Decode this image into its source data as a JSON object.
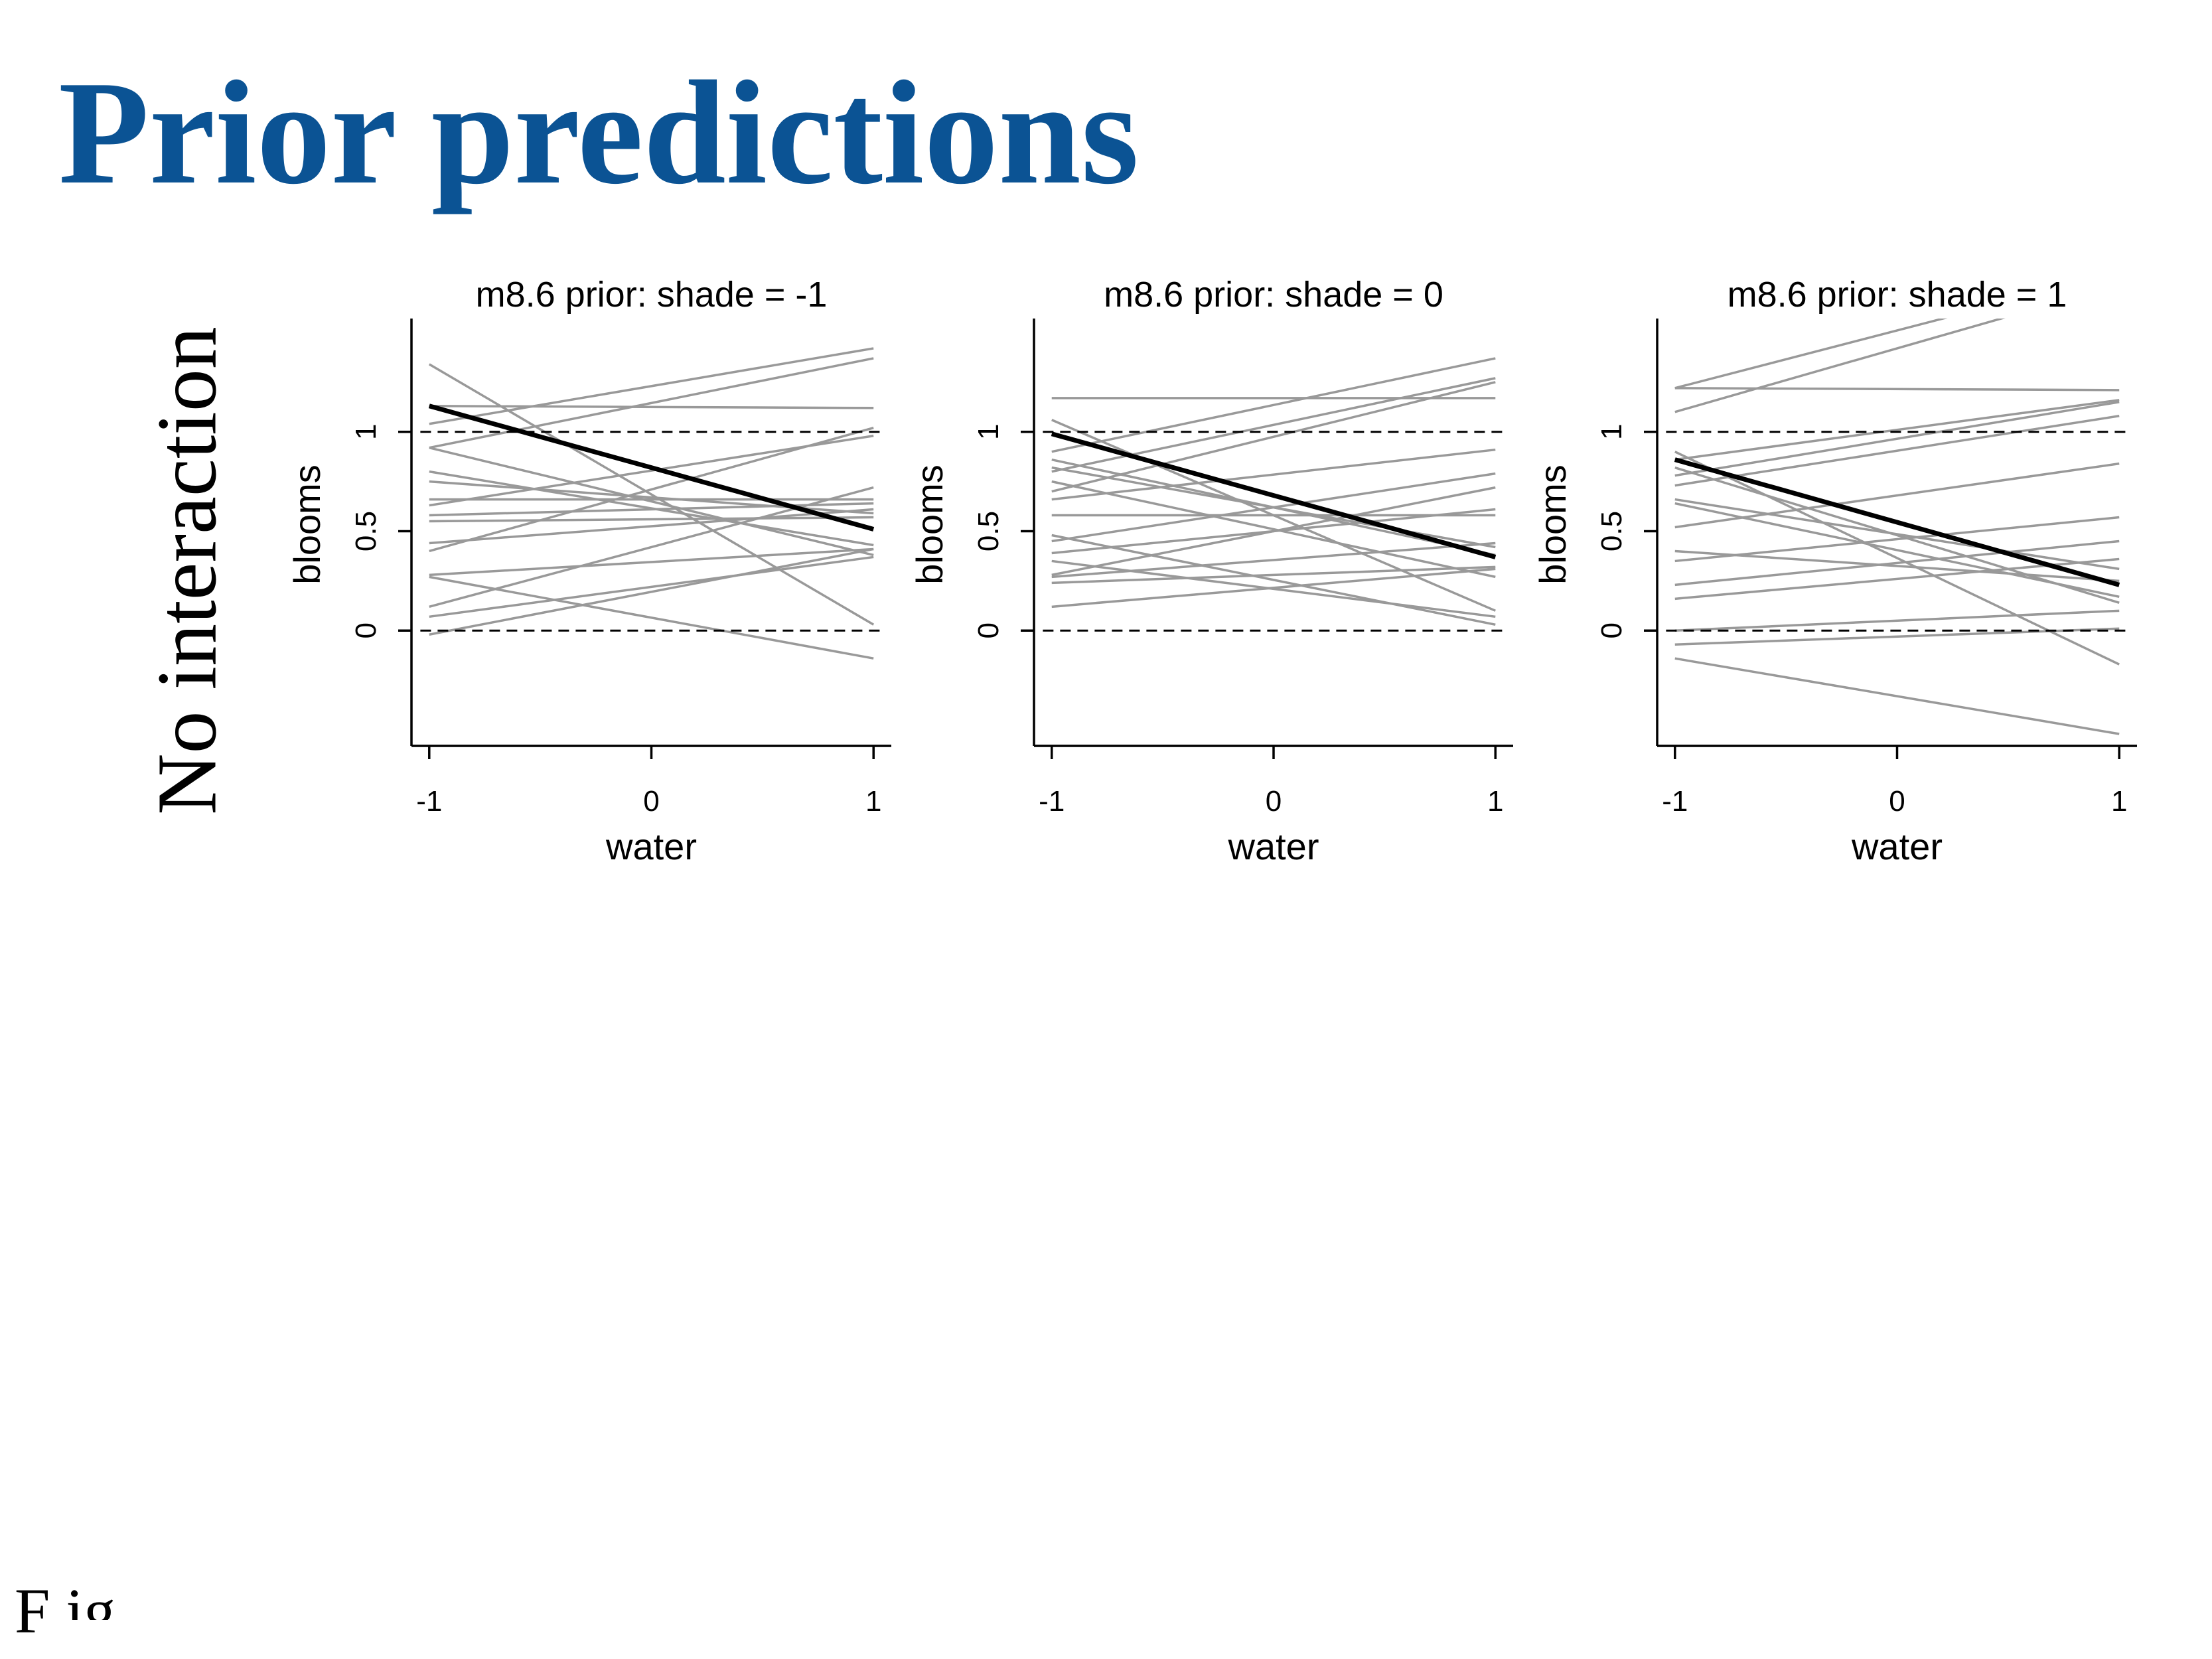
{
  "slide": {
    "title": "Prior predictions",
    "side_label": "No interaction",
    "footer_letter": "F",
    "footer_cut": "ig"
  },
  "colors": {
    "title": "#0b5394",
    "prior_line": "#999999",
    "mean_line": "#000000",
    "ref_line": "#000000"
  },
  "chart_data": [
    {
      "type": "line",
      "title": "m8.6 prior: shade = -1",
      "xlabel": "water",
      "ylabel": "blooms",
      "xlim": [
        -1.08,
        1.08
      ],
      "ylim": [
        -0.58,
        1.57
      ],
      "xticks": [
        -1,
        0,
        1
      ],
      "yticks": [
        0,
        0.5,
        1
      ],
      "reference_lines": [
        0,
        1
      ],
      "mean_line": {
        "x": [
          -1,
          1
        ],
        "y": [
          1.13,
          0.51
        ]
      },
      "series": [
        {
          "x": [
            -1,
            1
          ],
          "y": [
            1.34,
            0.03
          ]
        },
        {
          "x": [
            -1,
            1
          ],
          "y": [
            1.04,
            1.42
          ]
        },
        {
          "x": [
            -1,
            1
          ],
          "y": [
            0.92,
            1.37
          ]
        },
        {
          "x": [
            -1,
            1
          ],
          "y": [
            1.13,
            1.12
          ]
        },
        {
          "x": [
            -1,
            1
          ],
          "y": [
            0.92,
            0.38
          ]
        },
        {
          "x": [
            -1,
            1
          ],
          "y": [
            0.8,
            0.43
          ]
        },
        {
          "x": [
            -1,
            1
          ],
          "y": [
            0.75,
            0.59
          ]
        },
        {
          "x": [
            -1,
            1
          ],
          "y": [
            0.66,
            0.66
          ]
        },
        {
          "x": [
            -1,
            1
          ],
          "y": [
            0.58,
            0.64
          ]
        },
        {
          "x": [
            -1,
            1
          ],
          "y": [
            0.55,
            0.57
          ]
        },
        {
          "x": [
            -1,
            1
          ],
          "y": [
            0.44,
            0.61
          ]
        },
        {
          "x": [
            -1,
            1
          ],
          "y": [
            0.4,
            1.02
          ]
        },
        {
          "x": [
            -1,
            1
          ],
          "y": [
            0.28,
            0.41
          ]
        },
        {
          "x": [
            -1,
            1
          ],
          "y": [
            0.27,
            -0.14
          ]
        },
        {
          "x": [
            -1,
            1
          ],
          "y": [
            0.12,
            0.72
          ]
        },
        {
          "x": [
            -1,
            1
          ],
          "y": [
            0.07,
            0.37
          ]
        },
        {
          "x": [
            -1,
            1
          ],
          "y": [
            -0.02,
            0.41
          ]
        },
        {
          "x": [
            -1,
            1
          ],
          "y": [
            0.63,
            0.98
          ]
        }
      ]
    },
    {
      "type": "line",
      "title": "m8.6 prior: shade = 0",
      "xlabel": "water",
      "ylabel": "blooms",
      "xlim": [
        -1.08,
        1.08
      ],
      "ylim": [
        -0.58,
        1.57
      ],
      "xticks": [
        -1,
        0,
        1
      ],
      "yticks": [
        0,
        0.5,
        1
      ],
      "reference_lines": [
        0,
        1
      ],
      "mean_line": {
        "x": [
          -1,
          1
        ],
        "y": [
          0.99,
          0.37
        ]
      },
      "series": [
        {
          "x": [
            -1,
            1
          ],
          "y": [
            1.17,
            1.17
          ]
        },
        {
          "x": [
            -1,
            1
          ],
          "y": [
            1.06,
            0.1
          ]
        },
        {
          "x": [
            -1,
            1
          ],
          "y": [
            0.9,
            1.37
          ]
        },
        {
          "x": [
            -1,
            1
          ],
          "y": [
            0.86,
            0.38
          ]
        },
        {
          "x": [
            -1,
            1
          ],
          "y": [
            0.8,
            1.27
          ]
        },
        {
          "x": [
            -1,
            1
          ],
          "y": [
            0.75,
            0.27
          ]
        },
        {
          "x": [
            -1,
            1
          ],
          "y": [
            0.7,
            1.25
          ]
        },
        {
          "x": [
            -1,
            1
          ],
          "y": [
            0.66,
            0.91
          ]
        },
        {
          "x": [
            -1,
            1
          ],
          "y": [
            0.58,
            0.58
          ]
        },
        {
          "x": [
            -1,
            1
          ],
          "y": [
            0.48,
            0.03
          ]
        },
        {
          "x": [
            -1,
            1
          ],
          "y": [
            0.45,
            0.79
          ]
        },
        {
          "x": [
            -1,
            1
          ],
          "y": [
            0.39,
            0.61
          ]
        },
        {
          "x": [
            -1,
            1
          ],
          "y": [
            0.35,
            0.07
          ]
        },
        {
          "x": [
            -1,
            1
          ],
          "y": [
            0.27,
            0.44
          ]
        },
        {
          "x": [
            -1,
            1
          ],
          "y": [
            0.24,
            0.32
          ]
        },
        {
          "x": [
            -1,
            1
          ],
          "y": [
            0.12,
            0.31
          ]
        },
        {
          "x": [
            -1,
            1
          ],
          "y": [
            0.28,
            0.72
          ]
        },
        {
          "x": [
            -1,
            1
          ],
          "y": [
            0.82,
            0.42
          ]
        }
      ]
    },
    {
      "type": "line",
      "title": "m8.6 prior: shade = 1",
      "xlabel": "water",
      "ylabel": "blooms",
      "xlim": [
        -1.08,
        1.08
      ],
      "ylim": [
        -0.58,
        1.57
      ],
      "xticks": [
        -1,
        0,
        1
      ],
      "yticks": [
        0,
        0.5,
        1
      ],
      "reference_lines": [
        0,
        1
      ],
      "mean_line": {
        "x": [
          -1,
          1
        ],
        "y": [
          0.86,
          0.23
        ]
      },
      "series": [
        {
          "x": [
            -1,
            1
          ],
          "y": [
            1.22,
            1.8
          ]
        },
        {
          "x": [
            -1,
            1
          ],
          "y": [
            1.1,
            1.74
          ]
        },
        {
          "x": [
            -1,
            1
          ],
          "y": [
            1.22,
            1.21
          ]
        },
        {
          "x": [
            -1,
            1
          ],
          "y": [
            0.9,
            -0.17
          ]
        },
        {
          "x": [
            -1,
            1
          ],
          "y": [
            0.86,
            1.16
          ]
        },
        {
          "x": [
            -1,
            1
          ],
          "y": [
            0.78,
            1.15
          ]
        },
        {
          "x": [
            -1,
            1
          ],
          "y": [
            0.73,
            1.08
          ]
        },
        {
          "x": [
            -1,
            1
          ],
          "y": [
            0.66,
            0.31
          ]
        },
        {
          "x": [
            -1,
            1
          ],
          "y": [
            0.64,
            0.17
          ]
        },
        {
          "x": [
            -1,
            1
          ],
          "y": [
            0.52,
            0.84
          ]
        },
        {
          "x": [
            -1,
            1
          ],
          "y": [
            0.4,
            0.25
          ]
        },
        {
          "x": [
            -1,
            1
          ],
          "y": [
            0.35,
            0.57
          ]
        },
        {
          "x": [
            -1,
            1
          ],
          "y": [
            0.23,
            0.45
          ]
        },
        {
          "x": [
            -1,
            1
          ],
          "y": [
            0.16,
            0.36
          ]
        },
        {
          "x": [
            -1,
            1
          ],
          "y": [
            0.0,
            0.1
          ]
        },
        {
          "x": [
            -1,
            1
          ],
          "y": [
            -0.07,
            0.01
          ]
        },
        {
          "x": [
            -1,
            1
          ],
          "y": [
            -0.14,
            -0.52
          ]
        },
        {
          "x": [
            -1,
            1
          ],
          "y": [
            0.82,
            0.14
          ]
        }
      ]
    }
  ]
}
